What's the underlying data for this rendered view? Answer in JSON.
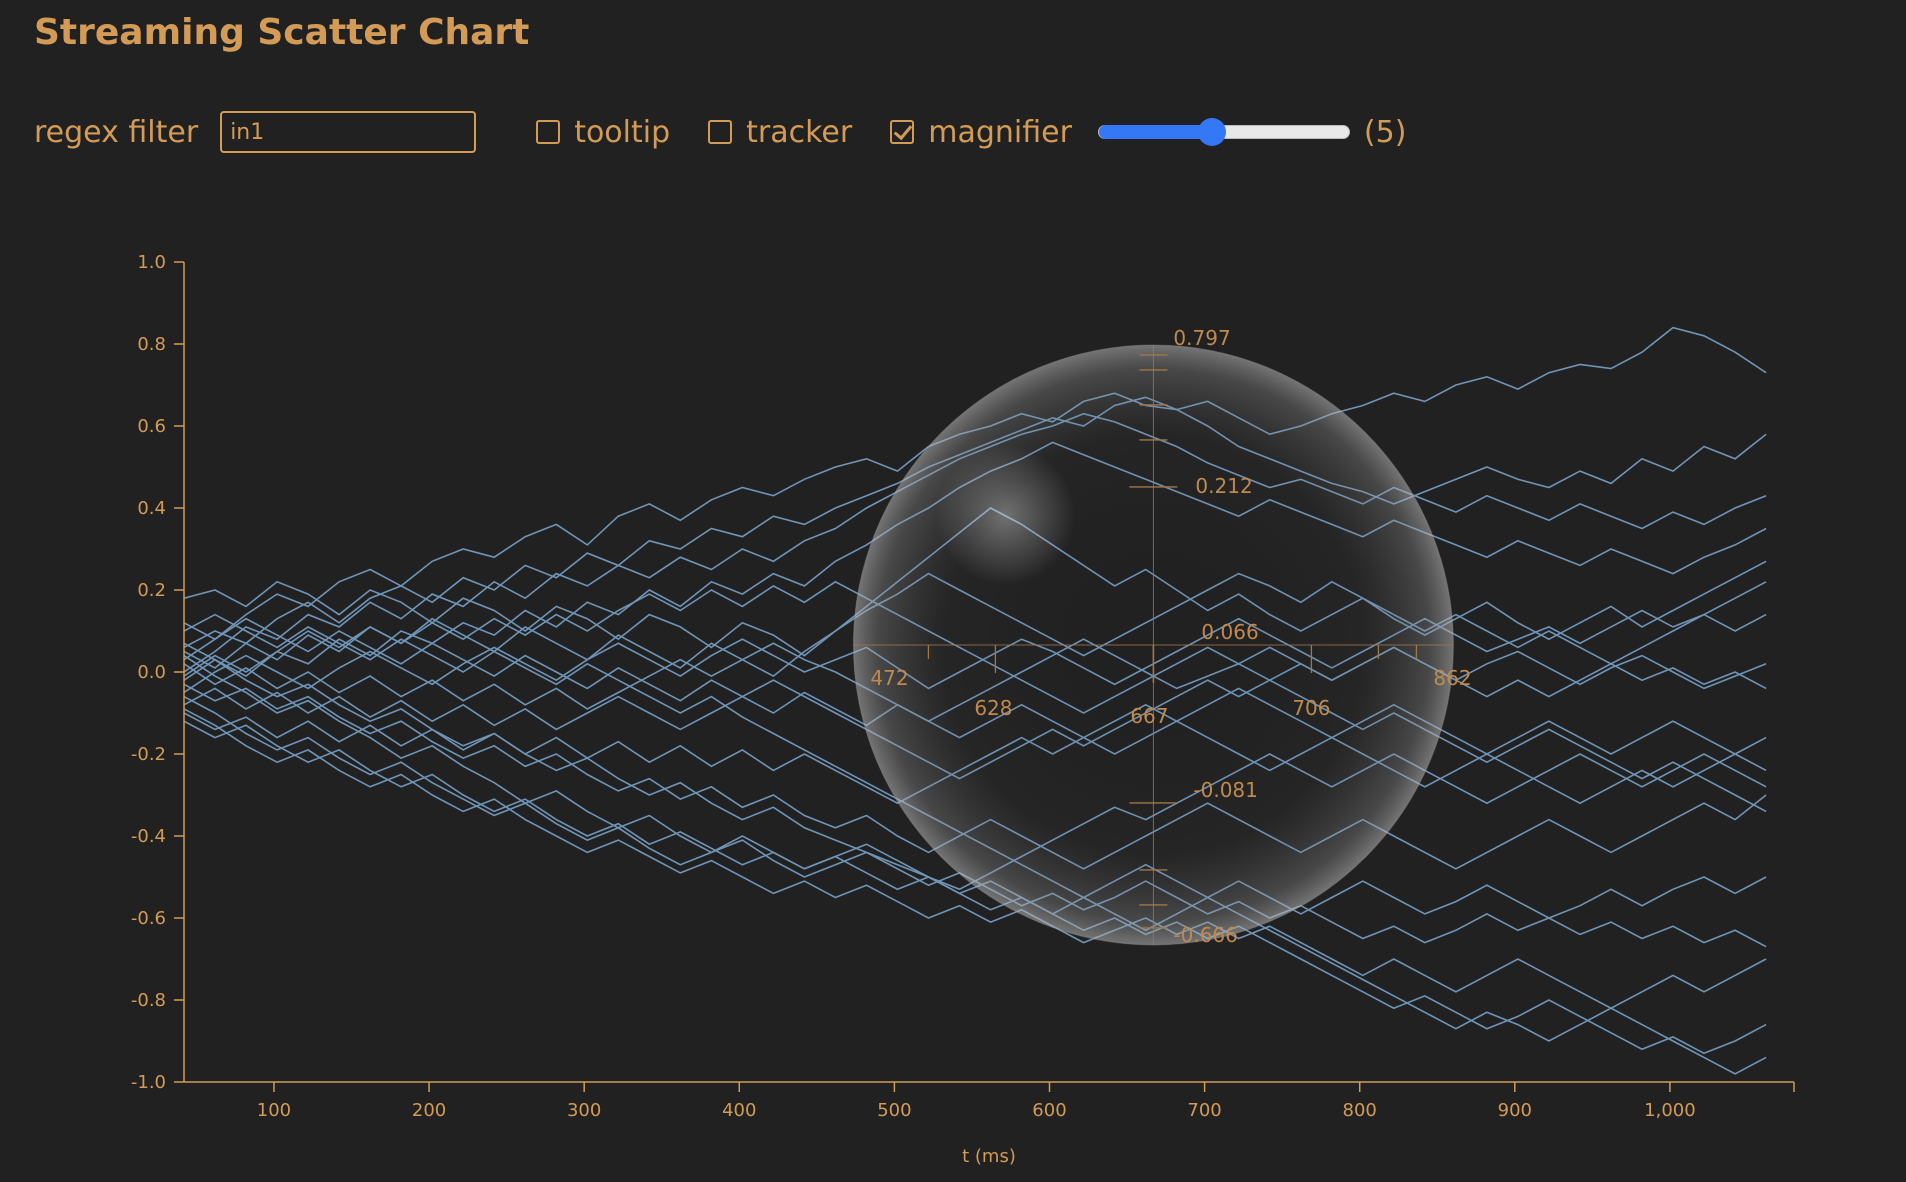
{
  "title": "Streaming Scatter Chart",
  "controls": {
    "filter_label": "regex filter",
    "filter_value": "in1",
    "tooltip_label": "tooltip",
    "tooltip_checked": false,
    "tracker_label": "tracker",
    "tracker_checked": false,
    "magnifier_label": "magnifier",
    "magnifier_checked": true,
    "slider_fraction": 0.45,
    "slider_value_text": "(5)",
    "accent_color": "#3478f6"
  },
  "chart_data": {
    "type": "line",
    "xlabel": "t (ms)",
    "ylabel": "",
    "xlim": [
      42,
      1080
    ],
    "ylim": [
      -1.0,
      1.0
    ],
    "x_ticks": [
      100,
      200,
      300,
      400,
      500,
      600,
      700,
      800,
      900,
      1000
    ],
    "x_tick_labels": [
      "100",
      "200",
      "300",
      "400",
      "500",
      "600",
      "700",
      "800",
      "900",
      "1,000"
    ],
    "y_ticks": [
      1.0,
      0.8,
      0.6,
      0.4,
      0.2,
      0.0,
      -0.2,
      -0.4,
      -0.6,
      -0.8,
      -1.0
    ],
    "y_tick_labels": [
      "1.0",
      "0.8",
      "0.6",
      "0.4",
      "0.2",
      "0.0",
      "-0.2",
      "-0.4",
      "-0.6",
      "-0.8",
      "-1.0"
    ],
    "grid": false,
    "line_color": "#6f95b8",
    "x": [
      42,
      62,
      82,
      102,
      122,
      142,
      162,
      182,
      202,
      222,
      242,
      262,
      282,
      302,
      322,
      342,
      362,
      382,
      402,
      422,
      442,
      462,
      482,
      502,
      522,
      542,
      562,
      582,
      602,
      622,
      642,
      662,
      682,
      702,
      722,
      742,
      762,
      782,
      802,
      822,
      842,
      862,
      882,
      902,
      922,
      942,
      962,
      982,
      1002,
      1022,
      1042,
      1062
    ],
    "series": [
      {
        "values": [
          0.03,
          0.08,
          0.14,
          0.19,
          0.16,
          0.22,
          0.25,
          0.21,
          0.27,
          0.3,
          0.28,
          0.33,
          0.36,
          0.31,
          0.38,
          0.41,
          0.37,
          0.42,
          0.45,
          0.43,
          0.47,
          0.5,
          0.52,
          0.49,
          0.55,
          0.58,
          0.6,
          0.63,
          0.61,
          0.66,
          0.68,
          0.65,
          0.64,
          0.66,
          0.62,
          0.58,
          0.6,
          0.63,
          0.65,
          0.68,
          0.66,
          0.7,
          0.72,
          0.69,
          0.73,
          0.75,
          0.74,
          0.78,
          0.84,
          0.82,
          0.78,
          0.73
        ]
      },
      {
        "values": [
          0.06,
          0.1,
          0.07,
          0.13,
          0.17,
          0.12,
          0.18,
          0.21,
          0.17,
          0.23,
          0.2,
          0.26,
          0.23,
          0.29,
          0.26,
          0.32,
          0.3,
          0.35,
          0.33,
          0.38,
          0.36,
          0.4,
          0.43,
          0.46,
          0.5,
          0.53,
          0.56,
          0.59,
          0.62,
          0.6,
          0.65,
          0.67,
          0.64,
          0.6,
          0.55,
          0.52,
          0.49,
          0.46,
          0.44,
          0.41,
          0.44,
          0.47,
          0.5,
          0.47,
          0.45,
          0.49,
          0.46,
          0.52,
          0.49,
          0.55,
          0.52,
          0.58
        ]
      },
      {
        "values": [
          0.0,
          0.05,
          0.11,
          0.08,
          0.14,
          0.11,
          0.17,
          0.13,
          0.19,
          0.16,
          0.22,
          0.18,
          0.24,
          0.21,
          0.26,
          0.23,
          0.28,
          0.25,
          0.3,
          0.27,
          0.32,
          0.35,
          0.4,
          0.44,
          0.48,
          0.52,
          0.55,
          0.58,
          0.6,
          0.63,
          0.61,
          0.58,
          0.55,
          0.51,
          0.48,
          0.45,
          0.47,
          0.44,
          0.41,
          0.45,
          0.42,
          0.39,
          0.43,
          0.4,
          0.37,
          0.41,
          0.38,
          0.35,
          0.39,
          0.36,
          0.4,
          0.43
        ]
      },
      {
        "values": [
          -0.02,
          0.03,
          -0.01,
          0.05,
          0.02,
          0.08,
          0.04,
          0.1,
          0.07,
          0.12,
          0.09,
          0.15,
          0.11,
          0.17,
          0.14,
          0.2,
          0.16,
          0.22,
          0.19,
          0.24,
          0.21,
          0.27,
          0.31,
          0.36,
          0.4,
          0.45,
          0.49,
          0.52,
          0.56,
          0.53,
          0.5,
          0.47,
          0.44,
          0.41,
          0.38,
          0.42,
          0.39,
          0.36,
          0.33,
          0.37,
          0.34,
          0.31,
          0.28,
          0.32,
          0.29,
          0.26,
          0.3,
          0.27,
          0.24,
          0.28,
          0.31,
          0.35
        ]
      },
      {
        "values": [
          0.18,
          0.2,
          0.16,
          0.22,
          0.19,
          0.14,
          0.2,
          0.17,
          0.12,
          0.18,
          0.15,
          0.1,
          0.16,
          0.13,
          0.08,
          0.14,
          0.11,
          0.06,
          0.12,
          0.09,
          0.04,
          0.1,
          0.16,
          0.22,
          0.28,
          0.34,
          0.4,
          0.36,
          0.31,
          0.26,
          0.21,
          0.25,
          0.2,
          0.15,
          0.19,
          0.14,
          0.1,
          0.14,
          0.18,
          0.13,
          0.09,
          0.13,
          0.17,
          0.12,
          0.08,
          0.12,
          0.16,
          0.11,
          0.15,
          0.19,
          0.23,
          0.27
        ]
      },
      {
        "values": [
          0.05,
          0.01,
          0.07,
          0.03,
          0.09,
          0.05,
          0.11,
          0.07,
          0.13,
          0.09,
          0.05,
          0.11,
          0.07,
          0.03,
          0.09,
          0.05,
          0.01,
          0.07,
          0.03,
          -0.01,
          0.05,
          0.1,
          0.15,
          0.19,
          0.24,
          0.2,
          0.16,
          0.12,
          0.08,
          0.04,
          0.08,
          0.12,
          0.16,
          0.2,
          0.24,
          0.21,
          0.17,
          0.22,
          0.18,
          0.14,
          0.1,
          0.14,
          0.1,
          0.06,
          0.1,
          0.06,
          0.02,
          0.06,
          0.1,
          0.14,
          0.18,
          0.22
        ]
      },
      {
        "values": [
          -0.05,
          0.0,
          0.04,
          0.0,
          -0.04,
          0.01,
          0.05,
          0.01,
          -0.03,
          0.02,
          0.06,
          0.02,
          -0.02,
          0.03,
          0.07,
          0.03,
          -0.01,
          0.04,
          0.08,
          0.04,
          0.0,
          0.03,
          0.06,
          0.01,
          -0.04,
          0.0,
          0.04,
          0.08,
          0.05,
          0.01,
          -0.03,
          0.01,
          0.05,
          0.09,
          0.13,
          0.09,
          0.05,
          0.01,
          0.05,
          0.09,
          0.13,
          0.09,
          0.05,
          0.08,
          0.11,
          0.07,
          0.11,
          0.15,
          0.11,
          0.14,
          0.1,
          0.14
        ]
      },
      {
        "values": [
          0.02,
          -0.03,
          0.01,
          -0.04,
          0.0,
          -0.05,
          -0.01,
          -0.06,
          -0.02,
          -0.07,
          -0.03,
          -0.08,
          -0.04,
          -0.09,
          -0.05,
          -0.01,
          0.03,
          -0.01,
          0.03,
          0.07,
          0.03,
          0.0,
          -0.04,
          -0.08,
          -0.12,
          -0.08,
          -0.04,
          0.0,
          0.04,
          0.08,
          0.04,
          0.0,
          -0.04,
          -0.01,
          0.02,
          0.06,
          0.02,
          -0.02,
          0.02,
          0.06,
          0.02,
          -0.02,
          0.02,
          0.05,
          0.01,
          -0.03,
          0.01,
          0.04,
          0.0,
          -0.04,
          -0.01,
          0.02
        ]
      },
      {
        "values": [
          -0.08,
          -0.04,
          -0.09,
          -0.05,
          -0.1,
          -0.06,
          -0.11,
          -0.07,
          -0.12,
          -0.08,
          -0.13,
          -0.09,
          -0.14,
          -0.1,
          -0.06,
          -0.1,
          -0.14,
          -0.1,
          -0.06,
          -0.02,
          -0.06,
          -0.1,
          -0.14,
          -0.18,
          -0.22,
          -0.26,
          -0.22,
          -0.18,
          -0.14,
          -0.18,
          -0.14,
          -0.1,
          -0.06,
          -0.02,
          -0.06,
          -0.02,
          0.02,
          -0.02,
          0.02,
          0.06,
          0.02,
          -0.02,
          -0.06,
          -0.02,
          -0.06,
          -0.02,
          0.02,
          -0.02,
          0.01,
          -0.03,
          0.0,
          -0.04
        ]
      },
      {
        "values": [
          -0.1,
          -0.14,
          -0.11,
          -0.16,
          -0.12,
          -0.17,
          -0.13,
          -0.18,
          -0.14,
          -0.19,
          -0.15,
          -0.2,
          -0.16,
          -0.21,
          -0.17,
          -0.22,
          -0.18,
          -0.23,
          -0.19,
          -0.24,
          -0.2,
          -0.24,
          -0.28,
          -0.32,
          -0.28,
          -0.24,
          -0.2,
          -0.16,
          -0.2,
          -0.16,
          -0.12,
          -0.08,
          -0.12,
          -0.08,
          -0.04,
          -0.08,
          -0.12,
          -0.16,
          -0.12,
          -0.08,
          -0.12,
          -0.16,
          -0.2,
          -0.16,
          -0.12,
          -0.16,
          -0.2,
          -0.16,
          -0.12,
          -0.16,
          -0.2,
          -0.24
        ]
      },
      {
        "values": [
          0.07,
          0.03,
          -0.02,
          -0.06,
          -0.03,
          -0.08,
          -0.12,
          -0.09,
          -0.14,
          -0.18,
          -0.15,
          -0.2,
          -0.24,
          -0.21,
          -0.26,
          -0.3,
          -0.27,
          -0.32,
          -0.36,
          -0.33,
          -0.38,
          -0.41,
          -0.44,
          -0.47,
          -0.5,
          -0.53,
          -0.49,
          -0.45,
          -0.41,
          -0.37,
          -0.33,
          -0.36,
          -0.32,
          -0.28,
          -0.24,
          -0.2,
          -0.24,
          -0.28,
          -0.24,
          -0.2,
          -0.24,
          -0.28,
          -0.32,
          -0.28,
          -0.24,
          -0.2,
          -0.24,
          -0.28,
          -0.24,
          -0.2,
          -0.24,
          -0.28
        ]
      },
      {
        "values": [
          -0.03,
          -0.07,
          -0.04,
          -0.09,
          -0.06,
          -0.11,
          -0.15,
          -0.12,
          -0.17,
          -0.21,
          -0.18,
          -0.23,
          -0.2,
          -0.25,
          -0.29,
          -0.26,
          -0.31,
          -0.28,
          -0.33,
          -0.3,
          -0.35,
          -0.38,
          -0.35,
          -0.4,
          -0.44,
          -0.4,
          -0.36,
          -0.4,
          -0.44,
          -0.48,
          -0.44,
          -0.4,
          -0.36,
          -0.32,
          -0.36,
          -0.4,
          -0.44,
          -0.4,
          -0.36,
          -0.4,
          -0.44,
          -0.48,
          -0.44,
          -0.4,
          -0.36,
          -0.4,
          -0.44,
          -0.4,
          -0.36,
          -0.32,
          -0.36,
          -0.3
        ]
      },
      {
        "values": [
          -0.06,
          -0.1,
          -0.15,
          -0.19,
          -0.16,
          -0.21,
          -0.25,
          -0.22,
          -0.27,
          -0.31,
          -0.35,
          -0.32,
          -0.37,
          -0.41,
          -0.38,
          -0.43,
          -0.47,
          -0.44,
          -0.4,
          -0.44,
          -0.48,
          -0.45,
          -0.42,
          -0.46,
          -0.5,
          -0.54,
          -0.51,
          -0.55,
          -0.59,
          -0.55,
          -0.51,
          -0.47,
          -0.51,
          -0.55,
          -0.51,
          -0.55,
          -0.59,
          -0.55,
          -0.51,
          -0.55,
          -0.59,
          -0.56,
          -0.52,
          -0.56,
          -0.6,
          -0.57,
          -0.53,
          -0.57,
          -0.53,
          -0.5,
          -0.54,
          -0.5
        ]
      },
      {
        "values": [
          0.04,
          -0.01,
          -0.05,
          -0.1,
          -0.07,
          -0.12,
          -0.16,
          -0.21,
          -0.18,
          -0.23,
          -0.27,
          -0.32,
          -0.29,
          -0.34,
          -0.38,
          -0.35,
          -0.4,
          -0.44,
          -0.41,
          -0.46,
          -0.5,
          -0.47,
          -0.44,
          -0.48,
          -0.52,
          -0.49,
          -0.53,
          -0.57,
          -0.54,
          -0.58,
          -0.55,
          -0.51,
          -0.55,
          -0.59,
          -0.56,
          -0.6,
          -0.57,
          -0.61,
          -0.65,
          -0.62,
          -0.66,
          -0.63,
          -0.59,
          -0.63,
          -0.6,
          -0.64,
          -0.61,
          -0.65,
          -0.62,
          -0.66,
          -0.63,
          -0.67
        ]
      },
      {
        "values": [
          -0.09,
          -0.13,
          -0.18,
          -0.22,
          -0.19,
          -0.24,
          -0.28,
          -0.25,
          -0.3,
          -0.34,
          -0.31,
          -0.36,
          -0.4,
          -0.44,
          -0.41,
          -0.45,
          -0.49,
          -0.46,
          -0.5,
          -0.54,
          -0.51,
          -0.55,
          -0.52,
          -0.56,
          -0.6,
          -0.57,
          -0.61,
          -0.58,
          -0.62,
          -0.66,
          -0.63,
          -0.6,
          -0.64,
          -0.61,
          -0.65,
          -0.62,
          -0.66,
          -0.7,
          -0.74,
          -0.7,
          -0.74,
          -0.78,
          -0.74,
          -0.7,
          -0.74,
          -0.78,
          -0.82,
          -0.78,
          -0.74,
          -0.78,
          -0.74,
          -0.7
        ]
      },
      {
        "values": [
          -0.12,
          -0.16,
          -0.13,
          -0.18,
          -0.22,
          -0.19,
          -0.24,
          -0.28,
          -0.25,
          -0.3,
          -0.34,
          -0.31,
          -0.36,
          -0.4,
          -0.37,
          -0.42,
          -0.39,
          -0.43,
          -0.47,
          -0.44,
          -0.48,
          -0.45,
          -0.49,
          -0.53,
          -0.5,
          -0.54,
          -0.58,
          -0.55,
          -0.59,
          -0.63,
          -0.6,
          -0.64,
          -0.61,
          -0.65,
          -0.62,
          -0.66,
          -0.7,
          -0.74,
          -0.78,
          -0.82,
          -0.79,
          -0.83,
          -0.87,
          -0.84,
          -0.8,
          -0.84,
          -0.88,
          -0.92,
          -0.89,
          -0.93,
          -0.9,
          -0.86
        ]
      },
      {
        "values": [
          0.1,
          0.14,
          0.1,
          0.06,
          0.11,
          0.07,
          0.03,
          0.08,
          0.04,
          0.0,
          0.05,
          0.01,
          -0.03,
          0.02,
          -0.02,
          -0.06,
          -0.1,
          -0.06,
          -0.11,
          -0.15,
          -0.19,
          -0.23,
          -0.27,
          -0.31,
          -0.35,
          -0.39,
          -0.43,
          -0.47,
          -0.51,
          -0.55,
          -0.59,
          -0.63,
          -0.59,
          -0.55,
          -0.59,
          -0.63,
          -0.67,
          -0.71,
          -0.75,
          -0.79,
          -0.83,
          -0.87,
          -0.83,
          -0.86,
          -0.9,
          -0.86,
          -0.82,
          -0.86,
          -0.9,
          -0.94,
          -0.98,
          -0.94
        ]
      },
      {
        "values": [
          0.12,
          0.08,
          0.13,
          0.09,
          0.05,
          0.1,
          0.06,
          0.02,
          0.07,
          0.03,
          -0.01,
          0.04,
          0.0,
          -0.04,
          0.01,
          -0.03,
          -0.07,
          -0.02,
          -0.06,
          -0.1,
          -0.05,
          -0.09,
          -0.13,
          -0.08,
          -0.12,
          -0.16,
          -0.12,
          -0.08,
          -0.12,
          -0.16,
          -0.2,
          -0.16,
          -0.12,
          -0.16,
          -0.2,
          -0.24,
          -0.2,
          -0.16,
          -0.2,
          -0.24,
          -0.28,
          -0.24,
          -0.2,
          -0.24,
          -0.28,
          -0.32,
          -0.28,
          -0.24,
          -0.28,
          -0.24,
          -0.2,
          -0.16
        ]
      },
      {
        "values": [
          -0.01,
          0.04,
          0.0,
          0.05,
          0.1,
          0.06,
          0.11,
          0.07,
          0.12,
          0.08,
          0.13,
          0.09,
          0.14,
          0.1,
          0.15,
          0.19,
          0.15,
          0.2,
          0.16,
          0.21,
          0.17,
          0.22,
          0.18,
          0.14,
          0.1,
          0.06,
          0.02,
          -0.02,
          -0.06,
          -0.1,
          -0.06,
          -0.02,
          0.02,
          0.06,
          0.02,
          -0.02,
          -0.06,
          -0.1,
          -0.14,
          -0.1,
          -0.14,
          -0.18,
          -0.22,
          -0.18,
          -0.14,
          -0.18,
          -0.22,
          -0.26,
          -0.22,
          -0.26,
          -0.3,
          -0.34
        ]
      }
    ]
  },
  "magnifier": {
    "center_x": 667,
    "center_y": 0.066,
    "radius_x_label_left": "472",
    "radius_x_label_right": "862",
    "x_labels": [
      "628",
      "667",
      "706"
    ],
    "y_labels": [
      "0.797",
      "0.212",
      "0.066",
      "-0.081",
      "-0.666"
    ]
  }
}
